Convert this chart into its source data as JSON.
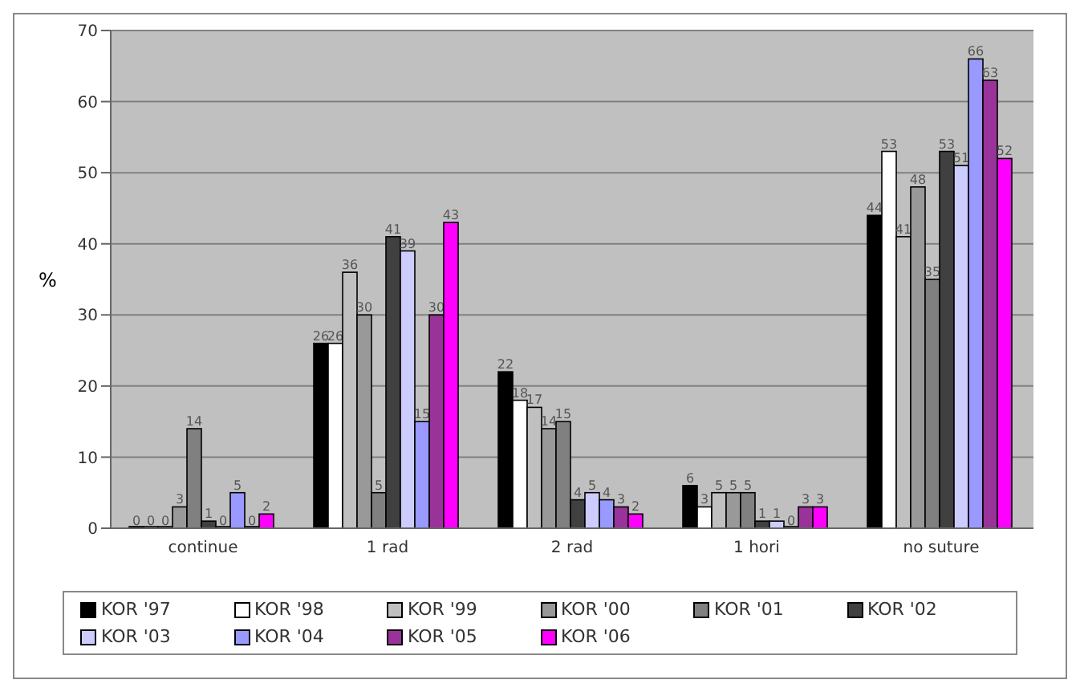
{
  "chart_data": {
    "type": "bar",
    "ylabel": "%",
    "categories": [
      "continue",
      "1 rad",
      "2 rad",
      "1 hori",
      "no suture"
    ],
    "series": [
      {
        "name": "KOR '97",
        "color": "#000000",
        "values": [
          0,
          26,
          22,
          6,
          44
        ]
      },
      {
        "name": "KOR '98",
        "color": "#ffffff",
        "values": [
          0,
          26,
          18,
          3,
          53
        ]
      },
      {
        "name": "KOR '99",
        "color": "#c0c0c0",
        "values": [
          0,
          36,
          17,
          5,
          41
        ]
      },
      {
        "name": "KOR '00",
        "color": "#999999",
        "values": [
          3,
          30,
          14,
          5,
          48
        ]
      },
      {
        "name": "KOR '01",
        "color": "#808080",
        "values": [
          14,
          5,
          15,
          5,
          35
        ]
      },
      {
        "name": "KOR '02",
        "color": "#404040",
        "values": [
          1,
          41,
          4,
          1,
          53
        ]
      },
      {
        "name": "KOR '03",
        "color": "#ccccff",
        "values": [
          0,
          39,
          5,
          1,
          51
        ]
      },
      {
        "name": "KOR '04",
        "color": "#9999ff",
        "values": [
          5,
          15,
          4,
          0,
          66
        ]
      },
      {
        "name": "KOR '05",
        "color": "#993399",
        "values": [
          0,
          30,
          3,
          3,
          63
        ]
      },
      {
        "name": "KOR '06",
        "color": "#ff00ff",
        "values": [
          2,
          43,
          2,
          3,
          52
        ]
      }
    ],
    "ylim": [
      0,
      70
    ],
    "yticks": [
      0,
      10,
      20,
      30,
      40,
      50,
      60,
      70
    ],
    "grid": "y",
    "data_labels": true,
    "legend": "bottom"
  }
}
